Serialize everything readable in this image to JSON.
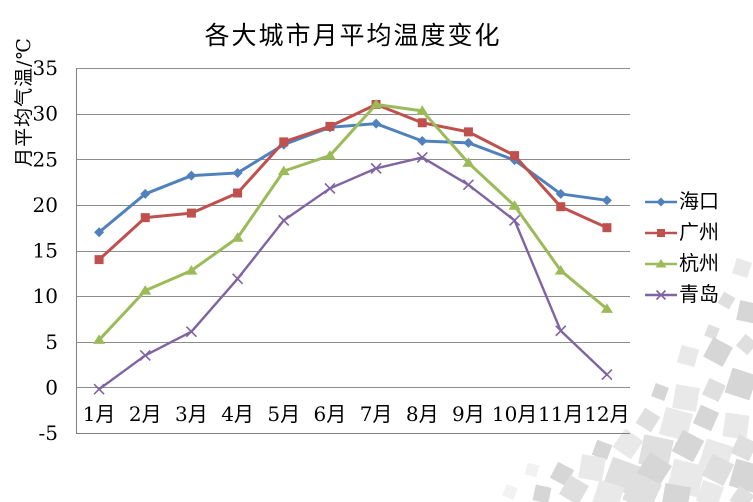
{
  "chart_data": {
    "type": "line",
    "title": "各大城市月平均温度变化",
    "ylabel": "月平均气温/℃",
    "xlabel": "",
    "categories": [
      "1月",
      "2月",
      "3月",
      "4月",
      "5月",
      "6月",
      "7月",
      "8月",
      "9月",
      "10月",
      "11月",
      "12月"
    ],
    "series": [
      {
        "id": "haikou",
        "name": "海口",
        "color": "#4F81BD",
        "marker": "diamond",
        "values": [
          17,
          21.2,
          23.2,
          23.5,
          26.6,
          28.5,
          28.9,
          27,
          26.8,
          24.9,
          21.2,
          20.5
        ]
      },
      {
        "id": "guangzhou",
        "name": "广州",
        "color": "#C0504D",
        "marker": "square",
        "values": [
          14,
          18.6,
          19.1,
          21.3,
          26.9,
          28.6,
          31,
          29,
          28,
          25.4,
          19.8,
          17.5
        ]
      },
      {
        "id": "hangzhou",
        "name": "杭州",
        "color": "#9BBB59",
        "marker": "triangle",
        "values": [
          5.2,
          10.6,
          12.8,
          16.4,
          23.7,
          25.4,
          31,
          30.3,
          24.6,
          19.9,
          12.8,
          8.6
        ]
      },
      {
        "id": "qingdao",
        "name": "青岛",
        "color": "#8064A2",
        "marker": "x",
        "values": [
          -0.2,
          3.5,
          6.1,
          11.9,
          18.3,
          21.8,
          24,
          25.2,
          22.2,
          18.3,
          6.2,
          1.4
        ]
      }
    ],
    "ylim": [
      -5,
      35
    ],
    "yticks": [
      -5,
      0,
      5,
      10,
      15,
      20,
      25,
      30,
      35
    ],
    "grid": true,
    "legend_position": "right",
    "axis_color": "#7f7f7f",
    "grid_color": "#8c8c8c",
    "text_color": "#000000"
  }
}
